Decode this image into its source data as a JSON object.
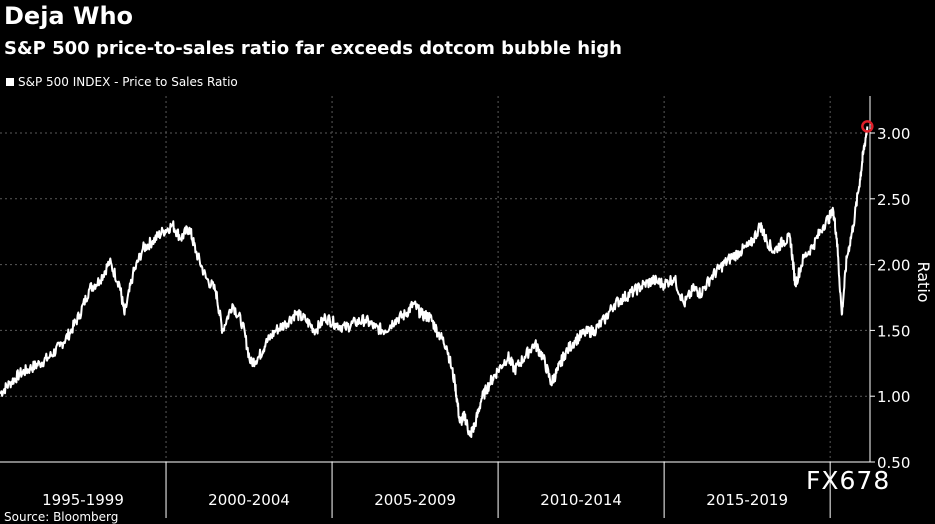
{
  "title": "Deja Who",
  "subtitle": "S&P 500 price-to-sales ratio far exceeds dotcom bubble high",
  "legend_label": "S&P 500 INDEX - Price to Sales Ratio",
  "watermark": "FX678",
  "source": "Source: Bloomberg",
  "colors": {
    "background": "#000000",
    "line": "#ffffff",
    "grid": "#5a5a5a",
    "highlight": "#e0202a"
  },
  "chart_data": {
    "type": "line",
    "title": "Deja Who",
    "subtitle": "S&P 500 price-to-sales ratio far exceeds dotcom bubble high",
    "xlabel": "",
    "ylabel": "Ratio",
    "xlim": [
      1995.0,
      2021.2
    ],
    "ylim": [
      0.5,
      3.25
    ],
    "y_ticks": [
      0.5,
      1.0,
      1.5,
      2.0,
      2.5,
      3.0
    ],
    "y_tick_labels": [
      "0.50",
      "1.00",
      "1.50",
      "2.00",
      "2.50",
      "3.00"
    ],
    "x_period_labels": [
      "1995-1999",
      "2000-2004",
      "2005-2009",
      "2010-2014",
      "2015-2019"
    ],
    "x_period_bounds": [
      1995,
      2000,
      2005,
      2010,
      2015,
      2020
    ],
    "grid": true,
    "legend_position": "top-left",
    "y_axis_position": "right",
    "series": [
      {
        "name": "S&P 500 INDEX - Price to Sales Ratio",
        "x": [
          1995.0,
          1995.3,
          1995.6,
          1995.9,
          1996.2,
          1996.5,
          1996.8,
          1997.1,
          1997.4,
          1997.7,
          1998.0,
          1998.3,
          1998.6,
          1998.75,
          1999.0,
          1999.3,
          1999.6,
          1999.9,
          2000.2,
          2000.45,
          2000.7,
          2000.9,
          2001.2,
          2001.5,
          2001.7,
          2002.0,
          2002.3,
          2002.55,
          2002.8,
          2003.0,
          2003.3,
          2003.6,
          2003.9,
          2004.2,
          2004.5,
          2004.8,
          2005.1,
          2005.4,
          2005.7,
          2006.0,
          2006.3,
          2006.6,
          2006.9,
          2007.2,
          2007.45,
          2007.7,
          2007.95,
          2008.2,
          2008.45,
          2008.7,
          2008.85,
          2009.0,
          2009.15,
          2009.3,
          2009.5,
          2009.75,
          2010.0,
          2010.3,
          2010.5,
          2010.8,
          2011.1,
          2011.35,
          2011.6,
          2011.8,
          2012.0,
          2012.3,
          2012.6,
          2012.9,
          2013.2,
          2013.5,
          2013.8,
          2014.1,
          2014.4,
          2014.7,
          2015.0,
          2015.3,
          2015.6,
          2015.9,
          2016.1,
          2016.4,
          2016.7,
          2017.0,
          2017.3,
          2017.6,
          2017.9,
          2018.05,
          2018.3,
          2018.6,
          2018.8,
          2018.95,
          2019.2,
          2019.5,
          2019.8,
          2020.1,
          2020.2,
          2020.35,
          2020.5,
          2020.7,
          2020.9,
          2021.0,
          2021.12
        ],
        "y": [
          1.02,
          1.1,
          1.17,
          1.21,
          1.25,
          1.3,
          1.38,
          1.48,
          1.62,
          1.82,
          1.88,
          2.02,
          1.85,
          1.62,
          1.92,
          2.12,
          2.18,
          2.25,
          2.3,
          2.2,
          2.28,
          2.1,
          1.9,
          1.8,
          1.5,
          1.7,
          1.55,
          1.25,
          1.3,
          1.4,
          1.5,
          1.55,
          1.63,
          1.58,
          1.5,
          1.6,
          1.55,
          1.52,
          1.56,
          1.58,
          1.52,
          1.5,
          1.58,
          1.62,
          1.7,
          1.62,
          1.6,
          1.48,
          1.38,
          1.1,
          0.8,
          0.85,
          0.7,
          0.78,
          0.98,
          1.1,
          1.2,
          1.3,
          1.2,
          1.3,
          1.4,
          1.3,
          1.1,
          1.2,
          1.32,
          1.42,
          1.48,
          1.5,
          1.58,
          1.7,
          1.75,
          1.8,
          1.85,
          1.88,
          1.85,
          1.9,
          1.7,
          1.82,
          1.78,
          1.9,
          1.98,
          2.05,
          2.1,
          2.15,
          2.3,
          2.2,
          2.1,
          2.18,
          2.2,
          1.85,
          2.05,
          2.15,
          2.3,
          2.4,
          2.2,
          1.62,
          2.05,
          2.3,
          2.65,
          2.85,
          3.05
        ]
      }
    ],
    "annotations": [
      {
        "x": 2021.12,
        "y": 3.05,
        "marker": "circle",
        "color": "#e0202a"
      }
    ]
  }
}
